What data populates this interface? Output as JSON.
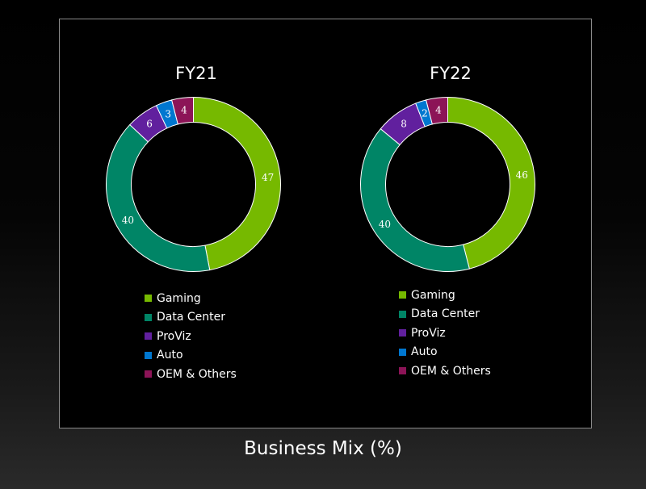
{
  "page_title": "Business Mix (%)",
  "colors": {
    "Gaming": "#76b900",
    "Data Center": "#008566",
    "ProViz": "#61209e",
    "Auto": "#0077d0",
    "OEM & Others": "#8c1457"
  },
  "chart_data": [
    {
      "type": "pie",
      "title": "FY21",
      "categories": [
        "Gaming",
        "Data Center",
        "ProViz",
        "Auto",
        "OEM & Others"
      ],
      "values": [
        47,
        40,
        6,
        3,
        4
      ],
      "data_labels": [
        "47",
        "40",
        "6",
        "3",
        "4"
      ],
      "donut": true,
      "legend": "below"
    },
    {
      "type": "pie",
      "title": "FY22",
      "categories": [
        "Gaming",
        "Data Center",
        "ProViz",
        "Auto",
        "OEM & Others"
      ],
      "values": [
        46,
        40,
        8,
        2,
        4
      ],
      "data_labels": [
        "46",
        "40",
        "8",
        "2",
        "4"
      ],
      "donut": true,
      "legend": "below"
    }
  ]
}
